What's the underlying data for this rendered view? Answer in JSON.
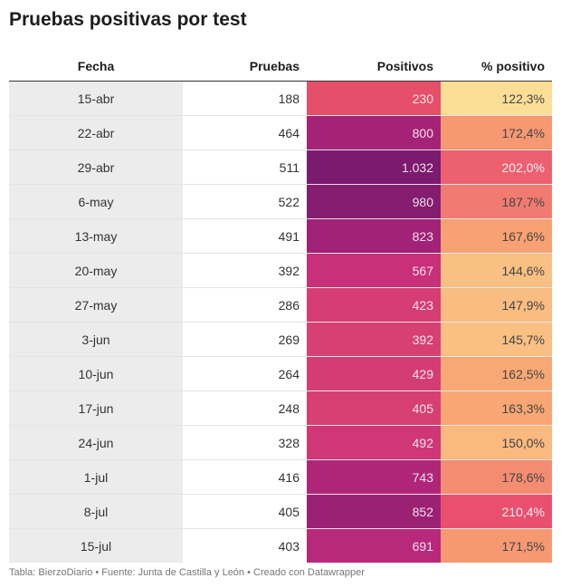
{
  "title": "Pruebas positivas por test",
  "footer": "Tabla: BierzoDiario • Fuente: Junta de Castilla y León • Creado con Datawrapper",
  "chart_data": {
    "type": "table",
    "columns": [
      "Fecha",
      "Pruebas",
      "Positivos",
      "% positivo"
    ],
    "rows": [
      [
        "15-abr",
        "188",
        "230",
        "122,3%"
      ],
      [
        "22-abr",
        "464",
        "800",
        "172,4%"
      ],
      [
        "29-abr",
        "511",
        "1.032",
        "202,0%"
      ],
      [
        "6-may",
        "522",
        "980",
        "187,7%"
      ],
      [
        "13-may",
        "491",
        "823",
        "167,6%"
      ],
      [
        "20-may",
        "392",
        "567",
        "144,6%"
      ],
      [
        "27-may",
        "286",
        "423",
        "147,9%"
      ],
      [
        "3-jun",
        "269",
        "392",
        "145,7%"
      ],
      [
        "10-jun",
        "264",
        "429",
        "162,5%"
      ],
      [
        "17-jun",
        "248",
        "405",
        "163,3%"
      ],
      [
        "24-jun",
        "328",
        "492",
        "150,0%"
      ],
      [
        "1-jul",
        "416",
        "743",
        "178,6%"
      ],
      [
        "8-jul",
        "405",
        "852",
        "210,4%"
      ],
      [
        "15-jul",
        "403",
        "691",
        "171,5%"
      ]
    ],
    "positivos_values": [
      230,
      800,
      1032,
      980,
      823,
      567,
      423,
      392,
      429,
      405,
      492,
      743,
      852,
      691
    ],
    "pct_values": [
      122.3,
      172.4,
      202.0,
      187.7,
      167.6,
      144.6,
      147.9,
      145.7,
      162.5,
      163.3,
      150.0,
      178.6,
      210.4,
      171.5
    ],
    "positivos_color_scale": {
      "low": "#e54f6a",
      "mid": "#c32a7d",
      "high": "#7b1a6e"
    },
    "pct_color_scale": {
      "low": "#fbde96",
      "mid": "#f8a372",
      "high": "#e95070"
    }
  }
}
